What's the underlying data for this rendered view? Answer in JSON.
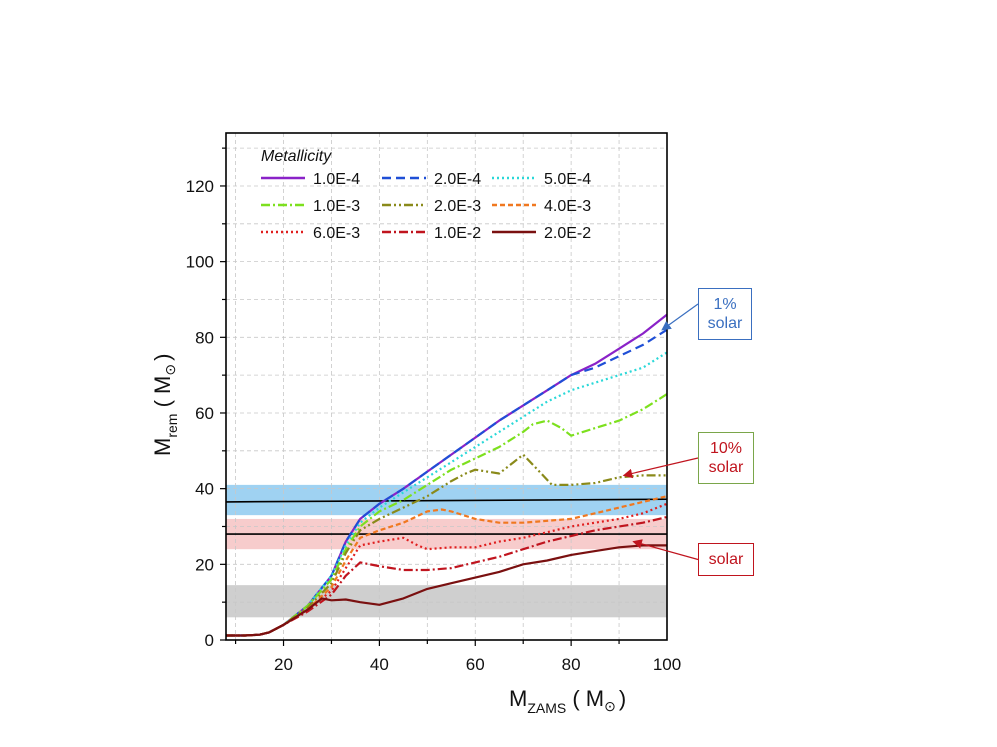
{
  "chart_data": {
    "type": "line",
    "xlabel": {
      "main": "M",
      "sub": "ZAMS",
      "unit": " ( M",
      "sun": "⊙",
      "close": ")"
    },
    "ylabel": {
      "main": "M",
      "sub": "rem",
      "unit": " ( M",
      "sun": "⊙",
      "close": ")"
    },
    "xlim": [
      8,
      100
    ],
    "ylim": [
      0,
      134
    ],
    "xticks": [
      20,
      40,
      60,
      80,
      100
    ],
    "yticks": [
      0,
      20,
      40,
      60,
      80,
      100,
      120
    ],
    "grid": true,
    "legend": {
      "title": "Metallicity",
      "placement": "top-left",
      "columns": 3
    },
    "series": [
      {
        "name": "1.0E-4",
        "color": "#8a22c8",
        "dash": "solid",
        "x": [
          8,
          12,
          15,
          17,
          20,
          25,
          30,
          33,
          36,
          40,
          45,
          50,
          55,
          60,
          65,
          70,
          75,
          80,
          85,
          90,
          95,
          100
        ],
        "y": [
          1.2,
          1.2,
          1.4,
          2,
          4,
          9,
          17,
          26,
          32,
          36,
          40,
          44.5,
          49,
          53.5,
          58,
          62,
          66,
          70,
          73,
          77,
          81,
          86
        ]
      },
      {
        "name": "2.0E-4",
        "color": "#1f4fd6",
        "dash": "dash",
        "x": [
          8,
          12,
          15,
          17,
          20,
          25,
          30,
          33,
          36,
          40,
          45,
          50,
          55,
          60,
          65,
          70,
          75,
          80,
          85,
          90,
          95,
          100
        ],
        "y": [
          1.2,
          1.2,
          1.4,
          2,
          4,
          9,
          17,
          26,
          32,
          36,
          40,
          44.5,
          49,
          53.5,
          58,
          62,
          66,
          70,
          72,
          75,
          78,
          82
        ]
      },
      {
        "name": "5.0E-4",
        "color": "#2ad8d8",
        "dash": "dot",
        "x": [
          8,
          12,
          15,
          17,
          20,
          25,
          30,
          33,
          36,
          40,
          45,
          50,
          55,
          60,
          65,
          70,
          75,
          80,
          85,
          90,
          95,
          100
        ],
        "y": [
          1.2,
          1.2,
          1.4,
          2,
          4,
          9,
          17,
          25,
          31,
          35,
          39,
          43,
          47,
          51,
          55,
          59,
          63,
          66,
          68,
          70,
          72,
          76
        ]
      },
      {
        "name": "1.0E-3",
        "color": "#7de01e",
        "dash": "dashdot",
        "x": [
          8,
          12,
          15,
          17,
          20,
          25,
          30,
          33,
          36,
          40,
          45,
          50,
          55,
          60,
          65,
          70,
          72,
          75,
          78,
          80,
          85,
          90,
          95,
          100
        ],
        "y": [
          1.2,
          1.2,
          1.4,
          2,
          4,
          9,
          16,
          24,
          30,
          34,
          37,
          41,
          45,
          48,
          51,
          55,
          57,
          58,
          56,
          54,
          56,
          58,
          61,
          65
        ]
      },
      {
        "name": "2.0E-3",
        "color": "#8a8a1a",
        "dash": "dashdotdot",
        "x": [
          8,
          12,
          15,
          17,
          20,
          25,
          30,
          33,
          36,
          40,
          45,
          50,
          55,
          58,
          60,
          65,
          68,
          70,
          73,
          76,
          80,
          85,
          90,
          95,
          100
        ],
        "y": [
          1.2,
          1.2,
          1.4,
          2,
          4,
          8.5,
          15,
          23,
          29,
          32,
          35,
          38,
          42,
          44,
          45,
          44,
          47,
          49,
          45,
          41,
          41,
          41.5,
          43,
          43.5,
          43.5
        ]
      },
      {
        "name": "4.0E-3",
        "color": "#f07820",
        "dash": "shortdash",
        "x": [
          8,
          12,
          15,
          17,
          20,
          25,
          30,
          33,
          36,
          40,
          45,
          50,
          53,
          55,
          60,
          65,
          70,
          75,
          80,
          85,
          90,
          95,
          100
        ],
        "y": [
          1.2,
          1.2,
          1.4,
          2,
          4,
          8,
          14,
          21,
          27,
          29,
          31,
          34,
          34.5,
          34,
          32,
          31,
          31,
          31.5,
          32,
          33.5,
          35,
          36.5,
          38
        ]
      },
      {
        "name": "6.0E-3",
        "color": "#e01e1e",
        "dash": "dot",
        "x": [
          8,
          12,
          15,
          17,
          20,
          25,
          30,
          33,
          36,
          40,
          45,
          48,
          50,
          55,
          60,
          65,
          70,
          75,
          80,
          85,
          90,
          95,
          100
        ],
        "y": [
          1.2,
          1.2,
          1.4,
          2,
          4,
          8,
          13,
          19,
          25,
          26,
          27,
          25,
          24,
          24.5,
          24.5,
          26,
          27,
          28.5,
          30,
          31,
          32,
          33.5,
          36
        ]
      },
      {
        "name": "1.0E-2",
        "color": "#c0141e",
        "dash": "dashdot",
        "x": [
          8,
          12,
          15,
          17,
          20,
          25,
          30,
          33,
          36,
          40,
          45,
          50,
          55,
          60,
          65,
          70,
          75,
          80,
          85,
          90,
          95,
          100
        ],
        "y": [
          1.2,
          1.2,
          1.4,
          2,
          4,
          7.5,
          12,
          17,
          20.5,
          19.5,
          18.5,
          18.5,
          19,
          20.5,
          22,
          24,
          26,
          27.5,
          29,
          30,
          31,
          32.5
        ]
      },
      {
        "name": "2.0E-2",
        "color": "#7a1010",
        "dash": "solid",
        "x": [
          8,
          12,
          15,
          17,
          20,
          25,
          28,
          30,
          33,
          36,
          40,
          45,
          50,
          55,
          60,
          65,
          70,
          75,
          80,
          85,
          90,
          95,
          100
        ],
        "y": [
          1.2,
          1.2,
          1.4,
          2,
          4,
          8,
          11,
          10.5,
          10.7,
          10,
          9.3,
          11,
          13.5,
          15,
          16.5,
          18,
          20,
          21,
          22.5,
          23.5,
          24.5,
          25,
          25
        ]
      }
    ],
    "bands": [
      {
        "y0": 33,
        "y1": 41,
        "color": "#9fd2f2"
      },
      {
        "y0": 24,
        "y1": 32,
        "color": "#f7cccc"
      },
      {
        "y0": 6,
        "y1": 14.5,
        "color": "#cfcfcf"
      }
    ],
    "hlines": [
      {
        "y0": 36.5,
        "y1": 37.2,
        "color": "#000000"
      },
      {
        "y0": 28,
        "y1": 28,
        "color": "#000000"
      }
    ],
    "annotations": [
      {
        "text": [
          "1%",
          "solar"
        ],
        "border": "#3a6fc0",
        "textcolor": "#3a6fc0",
        "arrow": "#3a6fc0",
        "target": [
          99,
          82
        ]
      },
      {
        "text": [
          "10%",
          "solar"
        ],
        "border": "#7aa64a",
        "textcolor": "#c0141e",
        "arrow": "#c0141e",
        "target": [
          91,
          43.5
        ]
      },
      {
        "text": [
          "solar"
        ],
        "border": "#c0141e",
        "textcolor": "#c0141e",
        "arrow": "#c0141e",
        "target": [
          93,
          26
        ]
      }
    ]
  }
}
